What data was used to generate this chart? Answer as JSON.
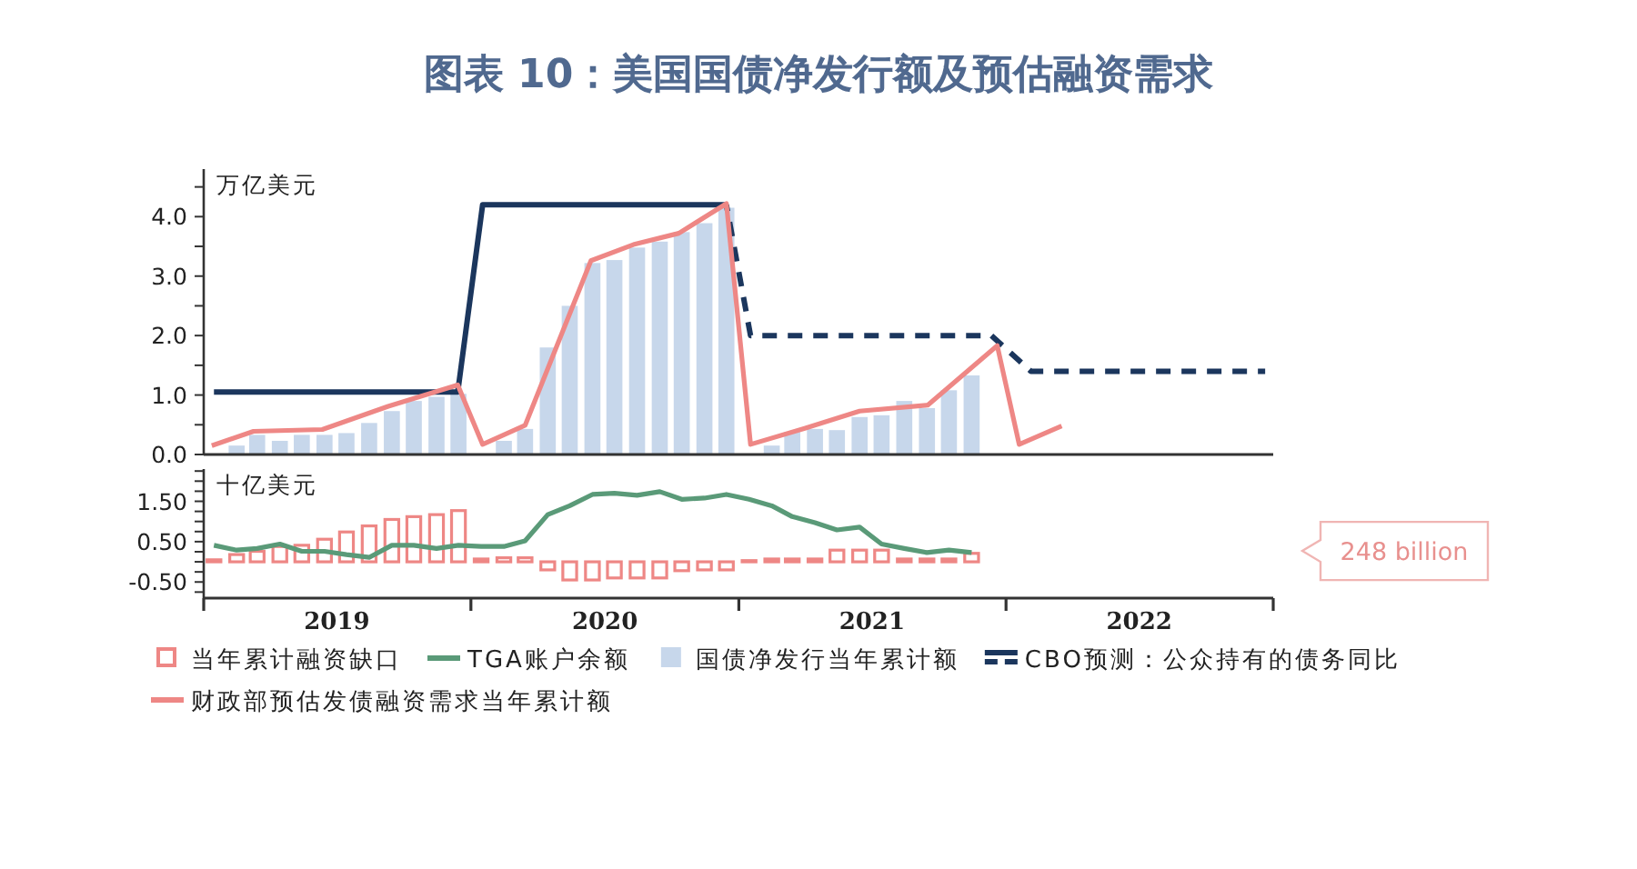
{
  "chart_data": [
    {
      "type": "bar",
      "title": "图表 10：美国国债净发行额及预估融资需求",
      "ylabel": "万亿美元",
      "xlim": [
        "2019-01-01",
        "2023-01-01"
      ],
      "ylim": [
        0,
        4.8
      ],
      "yticks": [
        {
          "value": 0,
          "label": "0.0"
        },
        {
          "value": 0.5,
          "label": null
        },
        {
          "value": 1,
          "label": "1.0"
        },
        {
          "value": 1.5,
          "label": null
        },
        {
          "value": 2,
          "label": "2.0"
        },
        {
          "value": 2.5,
          "label": null
        },
        {
          "value": 3,
          "label": "3.0"
        },
        {
          "value": 3.5,
          "label": null
        },
        {
          "value": 4,
          "label": "4.0"
        },
        {
          "value": 4.5,
          "label": null
        }
      ],
      "tick_labels": "y",
      "grid": false,
      "legend": "bottom",
      "series": [
        {
          "name": "国债净发行当年累计额",
          "color": "#c7d7eb",
          "x": [
            "2019-02-15",
            "2019-03-15",
            "2019-04-15",
            "2019-05-15",
            "2019-06-15",
            "2019-07-15",
            "2019-08-15",
            "2019-09-15",
            "2019-10-15",
            "2019-11-15",
            "2019-12-15",
            "2020-02-15",
            "2020-03-15",
            "2020-04-15",
            "2020-05-15",
            "2020-06-15",
            "2020-07-15",
            "2020-08-15",
            "2020-09-15",
            "2020-10-15",
            "2020-11-15",
            "2020-12-15",
            "2021-02-15",
            "2021-03-15",
            "2021-04-15",
            "2021-05-15",
            "2021-06-15",
            "2021-07-15",
            "2021-08-15",
            "2021-09-15",
            "2021-10-15",
            "2021-11-15"
          ],
          "values": [
            0.15,
            0.33,
            0.23,
            0.33,
            0.33,
            0.36,
            0.53,
            0.73,
            0.9,
            0.97,
            1.02,
            0.23,
            0.43,
            1.8,
            2.5,
            3.22,
            3.27,
            3.48,
            3.58,
            3.74,
            3.89,
            4.15,
            0.15,
            0.38,
            0.43,
            0.41,
            0.63,
            0.66,
            0.9,
            0.78,
            1.08,
            1.33
          ]
        },
        {
          "name": "CBO预测：公众持有的债务同比",
          "type": "line",
          "line_style": "solid",
          "color": "#1b365d",
          "x": [
            "2019-01-15",
            "2019-12-14",
            "2020-01-17",
            "2020-12-15"
          ],
          "values": [
            1.05,
            1.05,
            4.2,
            4.2
          ]
        },
        {
          "type": "line",
          "line_style": "dashed",
          "color": "#1b365d",
          "x": [
            "2020-12-15",
            "2021-01-17",
            "2021-12-12",
            "2022-02-04",
            "2022-12-21"
          ],
          "values": [
            4.2,
            2.0,
            2.0,
            1.4,
            1.4
          ]
        },
        {
          "name": "财政部预估发债融资需求当年累计额",
          "type": "line",
          "line_style": "solid",
          "color": "#ee8785",
          "x": [
            "2019-01-12",
            "2019-03-10",
            "2019-06-12",
            "2019-09-10",
            "2019-12-14",
            "2020-01-17",
            "2020-03-15",
            "2020-06-13",
            "2020-08-10",
            "2020-10-11",
            "2020-12-15",
            "2021-01-17",
            "2021-04-01",
            "2021-06-15",
            "2021-09-16",
            "2021-12-20",
            "2022-01-19",
            "2022-03-18"
          ],
          "values": [
            0.15,
            0.39,
            0.42,
            0.81,
            1.17,
            0.17,
            0.49,
            3.26,
            3.53,
            3.72,
            4.22,
            0.17,
            0.44,
            0.73,
            0.83,
            1.83,
            0.17,
            0.48
          ]
        }
      ]
    },
    {
      "type": "bar",
      "ylabel": "十亿美元",
      "xlim": [
        "2019-01-01",
        "2023-01-01"
      ],
      "ylim": [
        -0.9,
        2.3
      ],
      "xticks": [
        {
          "value": "2019-01-01",
          "label": null
        },
        {
          "value": "2019-07-02",
          "label": "2019"
        },
        {
          "value": "2020-01-01",
          "label": null
        },
        {
          "value": "2020-07-02",
          "label": "2020"
        },
        {
          "value": "2021-01-01",
          "label": null
        },
        {
          "value": "2021-07-02",
          "label": "2021"
        },
        {
          "value": "2022-01-01",
          "label": null
        },
        {
          "value": "2022-07-02",
          "label": "2022"
        },
        {
          "value": "2023-01-01",
          "label": null
        }
      ],
      "yticks": [
        {
          "value": -0.75,
          "label": null
        },
        {
          "value": -0.5,
          "label": "-0.50"
        },
        {
          "value": -0.25,
          "label": null
        },
        {
          "value": 0,
          "label": null
        },
        {
          "value": 0.25,
          "label": null
        },
        {
          "value": 0.5,
          "label": "0.50"
        },
        {
          "value": 0.75,
          "label": null
        },
        {
          "value": 1,
          "label": null
        },
        {
          "value": 1.25,
          "label": null
        },
        {
          "value": 1.5,
          "label": "1.50"
        },
        {
          "value": 1.75,
          "label": null
        },
        {
          "value": 2,
          "label": null
        },
        {
          "value": 2.25,
          "label": null
        }
      ],
      "grid": false,
      "legend": "bottom",
      "annotations": [
        "248 billion"
      ],
      "series": [
        {
          "name": "当年累计融资缺口",
          "color": "#ee8785",
          "x": [
            "2019-01-15",
            "2019-02-15",
            "2019-03-15",
            "2019-04-15",
            "2019-05-15",
            "2019-06-15",
            "2019-07-15",
            "2019-08-15",
            "2019-09-15",
            "2019-10-15",
            "2019-11-15",
            "2019-12-15",
            "2020-01-15",
            "2020-02-15",
            "2020-03-15",
            "2020-04-15",
            "2020-05-15",
            "2020-06-15",
            "2020-07-15",
            "2020-08-15",
            "2020-09-15",
            "2020-10-15",
            "2020-11-15",
            "2020-12-15",
            "2021-01-15",
            "2021-02-15",
            "2021-03-15",
            "2021-04-15",
            "2021-05-15",
            "2021-06-15",
            "2021-07-15",
            "2021-08-15",
            "2021-09-15",
            "2021-10-15",
            "2021-11-15"
          ],
          "values": [
            0.05,
            0.18,
            0.26,
            0.38,
            0.41,
            0.56,
            0.74,
            0.89,
            1.05,
            1.12,
            1.17,
            1.27,
            0.07,
            0.1,
            0.1,
            -0.2,
            -0.45,
            -0.45,
            -0.4,
            -0.4,
            -0.4,
            -0.22,
            -0.2,
            -0.2,
            0.03,
            0.07,
            0.07,
            0.07,
            0.29,
            0.29,
            0.29,
            0.07,
            0.07,
            0.07,
            0.21
          ]
        },
        {
          "name": "TGA账户余额",
          "type": "line",
          "line_style": "solid",
          "color": "#5a9a78",
          "x": [
            "2019-01-15",
            "2019-02-15",
            "2019-03-15",
            "2019-04-15",
            "2019-05-15",
            "2019-06-15",
            "2019-07-15",
            "2019-08-15",
            "2019-09-15",
            "2019-10-15",
            "2019-11-15",
            "2019-12-15",
            "2020-01-15",
            "2020-02-15",
            "2020-03-15",
            "2020-04-15",
            "2020-05-15",
            "2020-06-15",
            "2020-07-15",
            "2020-08-15",
            "2020-09-15",
            "2020-10-15",
            "2020-11-15",
            "2020-12-15",
            "2021-01-15",
            "2021-02-15",
            "2021-03-15",
            "2021-04-15",
            "2021-05-15",
            "2021-06-15",
            "2021-07-15",
            "2021-08-15",
            "2021-09-15",
            "2021-10-15",
            "2021-11-15"
          ],
          "values": [
            0.41,
            0.29,
            0.33,
            0.44,
            0.26,
            0.26,
            0.18,
            0.11,
            0.41,
            0.41,
            0.33,
            0.41,
            0.38,
            0.38,
            0.52,
            1.17,
            1.39,
            1.67,
            1.7,
            1.65,
            1.74,
            1.55,
            1.58,
            1.67,
            1.55,
            1.39,
            1.12,
            0.97,
            0.79,
            0.86,
            0.44,
            0.33,
            0.23,
            0.29,
            0.23
          ]
        }
      ]
    }
  ]
}
